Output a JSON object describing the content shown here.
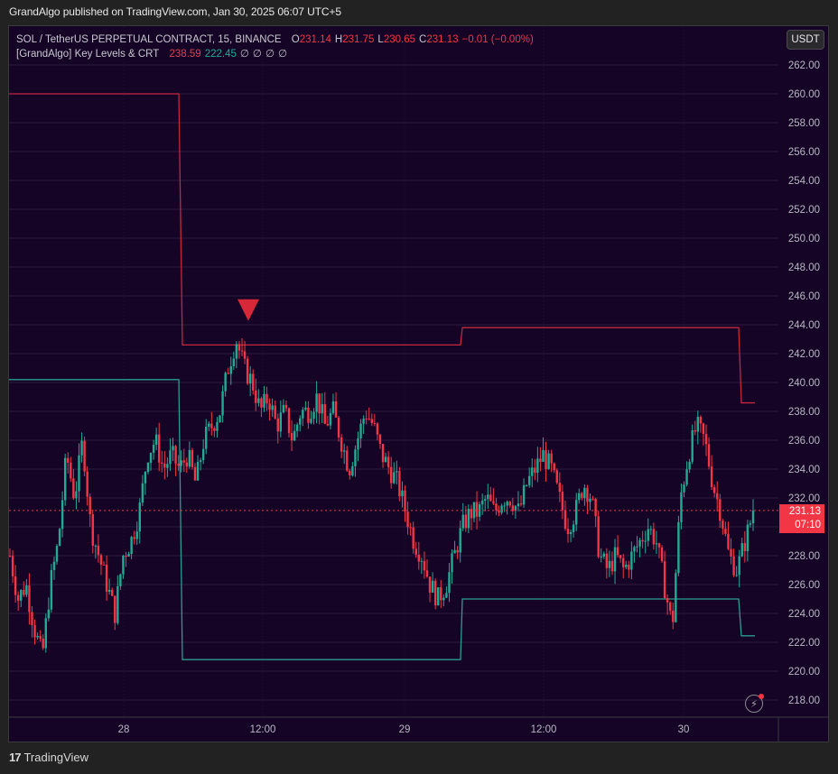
{
  "header": {
    "published_text": "GrandAlgo published on TradingView.com, Jan 30, 2025 06:07 UTC+5"
  },
  "legend": {
    "symbol": "SOL / TetherUS PERPETUAL CONTRACT, 15, BINANCE",
    "o_label": "O",
    "o_value": "231.14",
    "h_label": "H",
    "h_value": "231.75",
    "l_label": "L",
    "l_value": "230.65",
    "c_label": "C",
    "c_value": "231.13",
    "change": "−0.01 (−0.00%)",
    "indicator_name": "[GrandAlgo] Key Levels & CRT",
    "indicator_value_1": "238.59",
    "indicator_value_2": "222.45",
    "indicator_nulls": [
      "∅",
      "∅",
      "∅",
      "∅"
    ]
  },
  "currency_button": "USDT",
  "price_tag": {
    "price": "231.13",
    "countdown": "07:10"
  },
  "footer": {
    "logo_glyph": "17",
    "brand": "TradingView"
  },
  "colors": {
    "background": "#150426",
    "up": "#22ab94",
    "down": "#f23645",
    "key_high": "#c2283c",
    "key_low": "#2a9d8f",
    "grid": "#2a1c3d"
  },
  "chart_data": {
    "type": "candlestick",
    "title": "SOL / TetherUS PERPETUAL CONTRACT, 15, BINANCE",
    "interval": "15",
    "x_ticks": [
      "28",
      "12:00",
      "29",
      "12:00",
      "30"
    ],
    "y_ticks": [
      "262.00",
      "260.00",
      "258.00",
      "256.00",
      "254.00",
      "252.00",
      "250.00",
      "248.00",
      "246.00",
      "244.00",
      "242.00",
      "240.00",
      "238.00",
      "236.00",
      "234.00",
      "232.00",
      "230.00",
      "228.00",
      "226.00",
      "224.00",
      "222.00",
      "220.00",
      "218.00"
    ],
    "ylim": [
      217.2,
      264.0
    ],
    "last_price": 231.13,
    "ohlc_last": {
      "open": 231.14,
      "high": 231.75,
      "low": 230.65,
      "close": 231.13,
      "change": -0.01,
      "change_pct": -0.0
    },
    "key_levels": {
      "high": [
        {
          "x_from": 0,
          "x_to": 0.22,
          "value": 260.0
        },
        {
          "x_from": 0.22,
          "x_to": 0.585,
          "value": 242.6
        },
        {
          "x_from": 0.585,
          "x_to": 0.955,
          "value": 243.8
        },
        {
          "x_from": 0.955,
          "x_to": 0.975,
          "value": 238.59
        }
      ],
      "low": [
        {
          "x_from": 0,
          "x_to": 0.22,
          "value": 240.2
        },
        {
          "x_from": 0.22,
          "x_to": 0.585,
          "value": 220.8
        },
        {
          "x_from": 0.585,
          "x_to": 0.955,
          "value": 225.0
        },
        {
          "x_from": 0.955,
          "x_to": 0.975,
          "value": 222.45
        }
      ]
    },
    "markers": [
      {
        "type": "down-triangle",
        "at_price": 245.2,
        "label": "CRT high sweep"
      }
    ],
    "price_path": [
      228,
      225,
      226,
      223,
      221,
      226,
      229,
      235,
      232,
      236,
      230,
      228,
      226,
      224,
      228,
      229,
      231,
      235,
      236,
      234,
      235,
      234,
      235,
      233,
      236,
      237,
      238,
      241,
      243,
      241,
      240,
      238,
      239,
      237,
      238,
      236,
      238,
      238,
      239,
      237,
      238,
      236,
      234,
      236,
      238,
      237,
      235,
      234,
      233,
      231,
      229,
      228,
      226,
      225,
      226,
      228,
      230,
      231,
      231,
      232,
      231,
      232,
      232,
      231,
      233,
      234,
      235,
      234,
      232,
      230,
      231,
      233,
      232,
      228,
      227,
      228,
      227,
      228,
      229,
      230,
      229,
      226,
      223,
      232,
      235,
      237,
      236,
      233,
      231,
      228,
      227,
      229,
      231
    ],
    "series_note": "Approximate close path traced from pixels (15-minute candles, ~Jan 27 to Jan 30)"
  }
}
